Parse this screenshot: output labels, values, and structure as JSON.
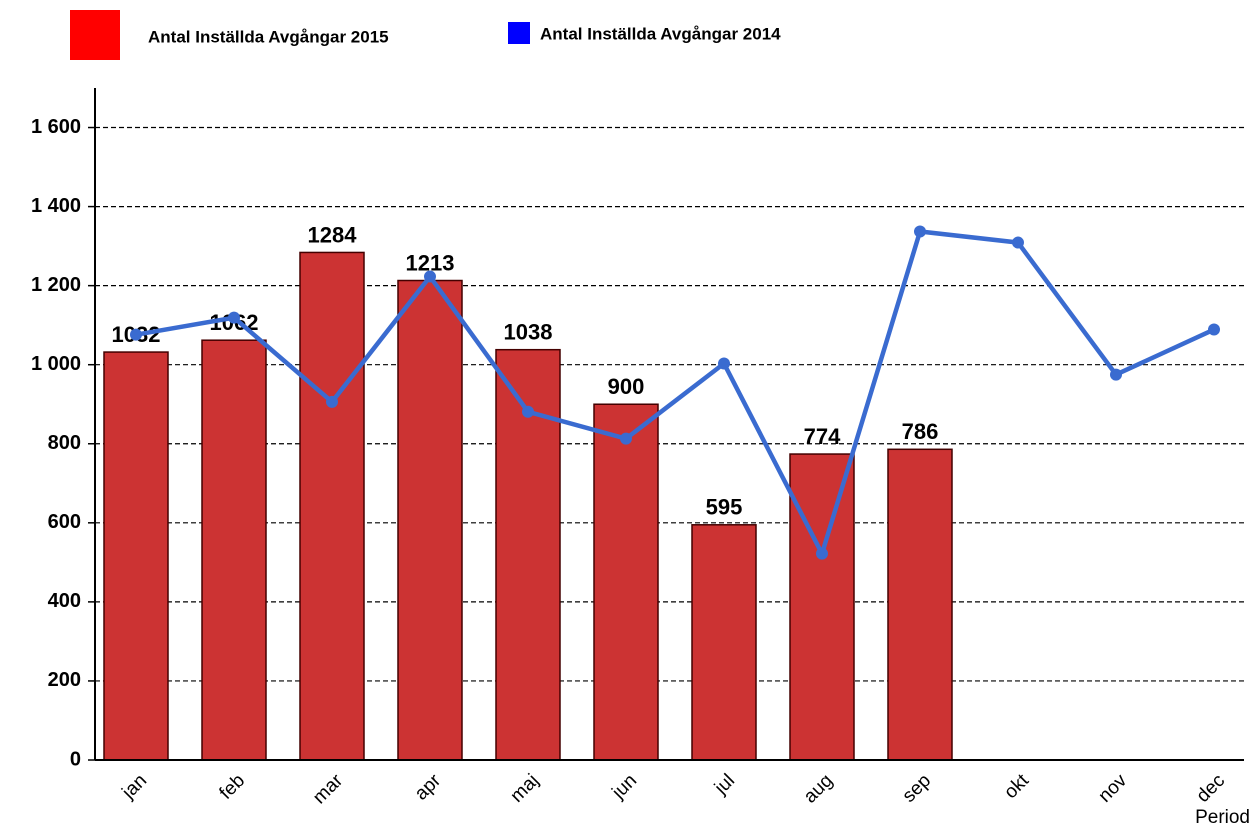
{
  "chart_data": {
    "type": "bar_line",
    "categories": [
      "jan",
      "feb",
      "mar",
      "apr",
      "maj",
      "jun",
      "jul",
      "aug",
      "sep",
      "okt",
      "nov",
      "dec"
    ],
    "series": [
      {
        "name": "Antal Inställda Avgångar 2015",
        "type": "bar",
        "color": "#cc3333",
        "legend_color": "#ff0000",
        "values": [
          1032,
          1062,
          1284,
          1213,
          1038,
          900,
          595,
          774,
          786,
          null,
          null,
          null
        ]
      },
      {
        "name": "Antal Inställda Avgångar 2014",
        "type": "line",
        "color": "#3a6bd0",
        "legend_color": "#0000ff",
        "values": [
          1076,
          1119,
          906,
          1223,
          881,
          813,
          1003,
          522,
          1337,
          1309,
          975,
          1089
        ]
      }
    ],
    "x_label": "Period",
    "ylim": [
      0,
      1700
    ],
    "yticks": [
      0,
      200,
      400,
      600,
      800,
      {
        "value": 1000,
        "label": "1 000"
      },
      {
        "value": 1200,
        "label": "1 200"
      },
      {
        "value": 1400,
        "label": "1 400"
      },
      {
        "value": 1600,
        "label": "1 600"
      }
    ],
    "grid": true
  }
}
